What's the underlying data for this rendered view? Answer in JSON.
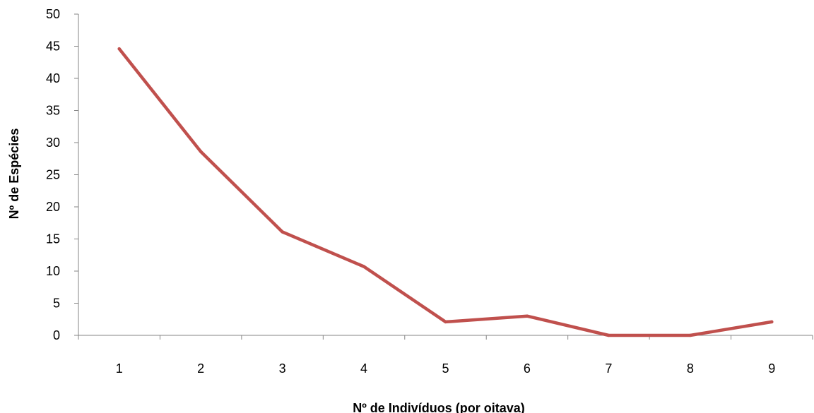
{
  "chart_data": {
    "type": "line",
    "title": "",
    "xlabel": "Nº de Indivíduos (por oitava)",
    "ylabel": "Nº de Espécies",
    "categories": [
      "1",
      "2",
      "3",
      "4",
      "5",
      "6",
      "7",
      "8",
      "9"
    ],
    "series": [
      {
        "name": "",
        "color": "#C0504D",
        "values": [
          44.6,
          28.6,
          16.1,
          10.7,
          2.1,
          3.0,
          0,
          0,
          2.1
        ]
      }
    ],
    "ylim": [
      0,
      50
    ],
    "yticks": [
      0,
      5,
      10,
      15,
      20,
      25,
      30,
      35,
      40,
      45,
      50
    ],
    "grid": false,
    "legend": "none"
  }
}
